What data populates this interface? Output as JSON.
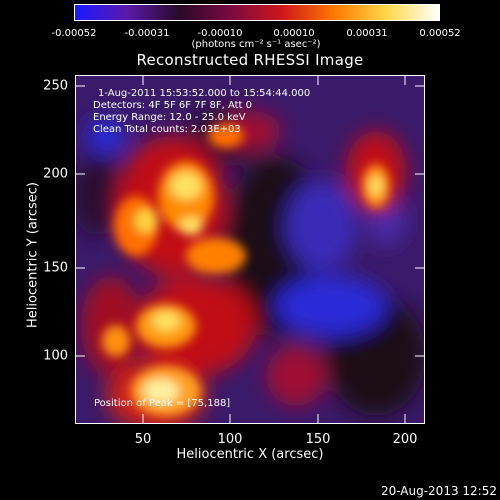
{
  "colorbar": {
    "tick_labels": [
      "-0.00052",
      "-0.00031",
      "-0.00010",
      "0.00010",
      "0.00031",
      "0.00052"
    ],
    "unit_label": "(photons cm⁻² s⁻¹ asec⁻²)",
    "colors": [
      "#1a1aff",
      "#5a1aa8",
      "#2a0a28",
      "#7a0a40",
      "#d01818",
      "#ff7a00",
      "#ffd84a",
      "#ffffff"
    ]
  },
  "plot": {
    "title": "Reconstructed RHESSI Image",
    "info": {
      "time_range": "1-Aug-2011 15:53:52.000 to 15:54:44.000",
      "detectors": "Detectors: 4F 5F 6F 7F 8F, Att 0",
      "energy": "Energy Range: 12.0 - 25.0 keV",
      "clean": "Clean    Total counts: 2.03E+03",
      "position": "Position of Peak = [75,188]"
    },
    "x_label": "Heliocentric X (arcsec)",
    "y_label": "Heliocentric Y (arcsec)",
    "x_ticks": [
      "50",
      "100",
      "150",
      "200"
    ],
    "y_ticks": [
      "100",
      "150",
      "200",
      "250"
    ]
  },
  "footer": {
    "date": "20-Aug-2013 12:52"
  }
}
